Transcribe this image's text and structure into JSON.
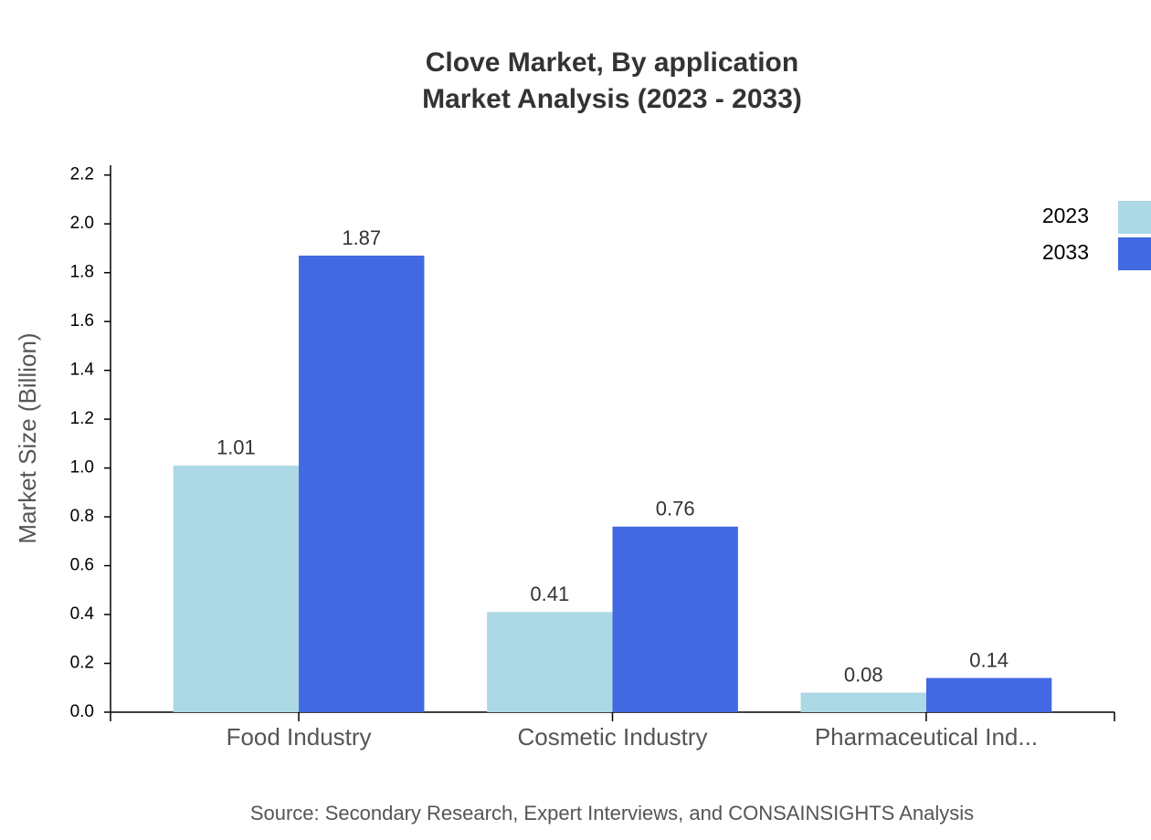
{
  "chart_data": {
    "type": "bar",
    "title": "Clove Market, By application",
    "subtitle": "Market Analysis (2023 - 2033)",
    "y_label": "Market Size (Billion)",
    "source": "Source: Secondary Research, Expert Interviews, and CONSAINSIGHTS Analysis",
    "categories": [
      "Food Industry",
      "Cosmetic Industry",
      "Pharmaceutical Ind..."
    ],
    "series": [
      {
        "name": "2023",
        "color": "#add8e6",
        "values": [
          1.01,
          0.41,
          0.08
        ]
      },
      {
        "name": "2033",
        "color": "#4169e1",
        "values": [
          1.87,
          0.76,
          0.14
        ]
      }
    ],
    "ylim": [
      0,
      2.24
    ],
    "yticks": [
      {
        "value": 0,
        "label": "0.0"
      },
      0.2,
      0.4,
      0.6,
      0.8,
      {
        "value": 1,
        "label": "1.0"
      },
      1.2,
      1.4,
      1.6,
      1.8,
      {
        "value": 2,
        "label": "2.0"
      },
      2.2
    ],
    "legend": "top-right",
    "grid": false
  }
}
